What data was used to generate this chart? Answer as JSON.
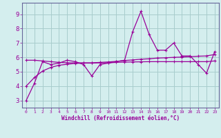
{
  "xlabel": "Windchill (Refroidissement éolien,°C)",
  "background_color": "#d4eeee",
  "grid_color": "#a8cccc",
  "line_color": "#990099",
  "spine_color": "#666699",
  "x_hours": [
    0,
    1,
    2,
    3,
    4,
    5,
    6,
    7,
    8,
    9,
    10,
    11,
    12,
    13,
    14,
    15,
    16,
    17,
    18,
    19,
    20,
    21,
    22,
    23
  ],
  "y_line1": [
    3.0,
    4.2,
    5.7,
    5.5,
    5.6,
    5.8,
    5.7,
    5.5,
    4.7,
    5.5,
    5.6,
    5.7,
    5.8,
    7.8,
    9.2,
    7.6,
    6.5,
    6.5,
    7.0,
    6.1,
    6.1,
    5.5,
    4.9,
    6.4
  ],
  "y_line2": [
    5.8,
    5.8,
    5.75,
    5.7,
    5.65,
    5.62,
    5.62,
    5.62,
    5.62,
    5.65,
    5.68,
    5.72,
    5.78,
    5.82,
    5.87,
    5.9,
    5.95,
    5.97,
    6.0,
    6.02,
    6.05,
    6.08,
    6.1,
    6.2
  ],
  "y_line3": [
    4.0,
    4.6,
    5.05,
    5.3,
    5.45,
    5.52,
    5.58,
    5.6,
    5.6,
    5.62,
    5.62,
    5.65,
    5.67,
    5.68,
    5.69,
    5.7,
    5.7,
    5.7,
    5.7,
    5.7,
    5.7,
    5.7,
    5.7,
    5.75
  ],
  "ylim": [
    2.5,
    9.8
  ],
  "yticks": [
    3,
    4,
    5,
    6,
    7,
    8,
    9
  ],
  "xlim": [
    -0.5,
    23.5
  ],
  "xtick_labels": [
    "0",
    "1",
    "2",
    "3",
    "4",
    "5",
    "6",
    "7",
    "8",
    "9",
    "10",
    "11",
    "12",
    "13",
    "14",
    "15",
    "16",
    "17",
    "18",
    "19",
    "20",
    "21",
    "22",
    "23"
  ]
}
